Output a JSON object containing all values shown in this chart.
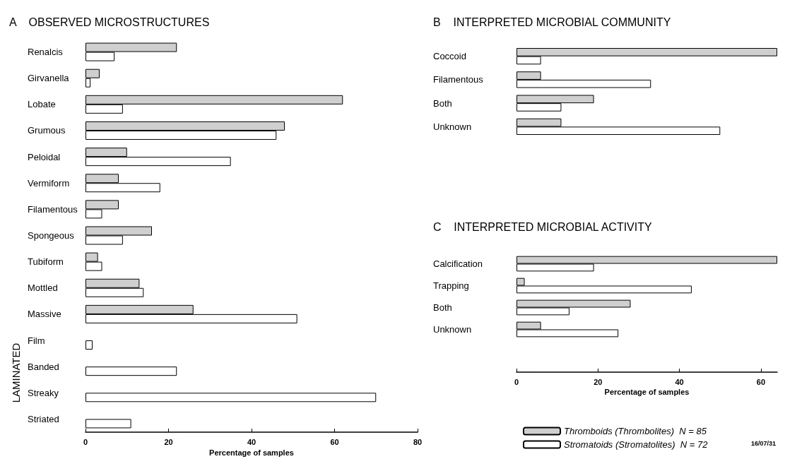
{
  "chart_data": [
    {
      "type": "bar",
      "orientation": "horizontal",
      "title": "A    OBSERVED MICROSTRUCTURES",
      "xlabel": "Percentage of samples",
      "categories": [
        "Renalcis",
        "Girvanella",
        "Lobate",
        "Grumous",
        "Peloidal",
        "Vermiform",
        "Filamentous",
        "Spongeous",
        "Tubiform",
        "Mottled",
        "Massive",
        "Film",
        "Banded",
        "Streaky",
        "Striated"
      ],
      "series": [
        {
          "color": "#cfcfcf",
          "values": [
            22,
            3.4,
            62,
            48,
            10,
            8,
            8,
            16,
            3,
            13,
            26,
            null,
            null,
            null,
            null
          ]
        },
        {
          "color": "#ffffff",
          "values": [
            7,
            1.2,
            9,
            46,
            35,
            18,
            4,
            9,
            4,
            14,
            51,
            1.7,
            22,
            70,
            11
          ]
        }
      ],
      "xlim": [
        0,
        80
      ],
      "xticks": [
        0,
        20,
        40,
        60,
        80
      ],
      "grid": false,
      "legend": false,
      "annotations": [
        "LAMINATED"
      ]
    },
    {
      "type": "bar",
      "orientation": "horizontal",
      "title": "B    INTERPRETED MICROBIAL COMMUNITY",
      "categories": [
        "Coccoid",
        "Filamentous",
        "Both",
        "Unknown"
      ],
      "series": [
        {
          "color": "#cfcfcf",
          "values": [
            64,
            6,
            19,
            11
          ]
        },
        {
          "color": "#ffffff",
          "values": [
            6,
            33,
            11,
            50
          ]
        }
      ],
      "xlim": [
        0,
        64
      ],
      "tick_labels": false,
      "grid": false,
      "legend": false
    },
    {
      "type": "bar",
      "orientation": "horizontal",
      "title": "C    INTERPRETED MICROBIAL ACTIVITY",
      "xlabel": "Percentage of samples",
      "categories": [
        "Calcification",
        "Trapping",
        "Both",
        "Unknown"
      ],
      "series": [
        {
          "name": "Thromboids (Thrombolites)  N = 85",
          "color": "#cfcfcf",
          "values": [
            64,
            2,
            28,
            6
          ]
        },
        {
          "name": "Stromatoids (Stromatolites)  N = 72",
          "color": "#ffffff",
          "values": [
            19,
            43,
            13,
            25
          ]
        }
      ],
      "xlim": [
        0,
        64
      ],
      "xticks": [
        0,
        20,
        40,
        60
      ],
      "grid": false,
      "legend": "bottom",
      "annotations": [
        "16/07/31"
      ]
    }
  ]
}
